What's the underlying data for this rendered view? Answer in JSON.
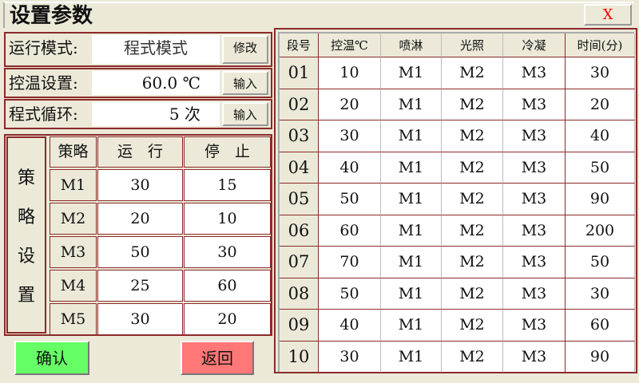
{
  "window": {
    "title": "设置参数",
    "close_label": "X"
  },
  "settings": [
    {
      "label": "运行模式:",
      "value": "程式模式",
      "button": "修改"
    },
    {
      "label": "控温设置:",
      "value": "60.0 ℃",
      "button": "输入"
    },
    {
      "label": "程式循环:",
      "value": "5 次",
      "button": "输入"
    }
  ],
  "strategy": {
    "side_label": [
      "策",
      "略",
      "设",
      "置"
    ],
    "headers": [
      "策略",
      "运　行",
      "停　止"
    ],
    "rows": [
      [
        "M1",
        "30",
        "15"
      ],
      [
        "M2",
        "20",
        "10"
      ],
      [
        "M3",
        "50",
        "30"
      ],
      [
        "M4",
        "25",
        "60"
      ],
      [
        "M5",
        "30",
        "20"
      ]
    ]
  },
  "buttons": {
    "confirm": "确认",
    "back": "返回",
    "confirm_color": "#66ff66",
    "back_color": "#ff7777"
  },
  "program": {
    "headers": [
      "段号",
      "控温℃",
      "喷淋",
      "光照",
      "冷凝",
      "时间(分)"
    ],
    "rows": [
      [
        "01",
        "10",
        "M1",
        "M2",
        "M3",
        "30"
      ],
      [
        "02",
        "20",
        "M1",
        "M2",
        "M3",
        "20"
      ],
      [
        "03",
        "30",
        "M1",
        "M2",
        "M3",
        "40"
      ],
      [
        "04",
        "40",
        "M1",
        "M2",
        "M3",
        "50"
      ],
      [
        "05",
        "50",
        "M1",
        "M2",
        "M3",
        "90"
      ],
      [
        "06",
        "60",
        "M1",
        "M2",
        "M3",
        "200"
      ],
      [
        "07",
        "70",
        "M1",
        "M2",
        "M3",
        "50"
      ],
      [
        "08",
        "50",
        "M1",
        "M2",
        "M3",
        "30"
      ],
      [
        "09",
        "40",
        "M1",
        "M2",
        "M3",
        "60"
      ],
      [
        "10",
        "30",
        "M1",
        "M2",
        "M3",
        "90"
      ]
    ]
  }
}
